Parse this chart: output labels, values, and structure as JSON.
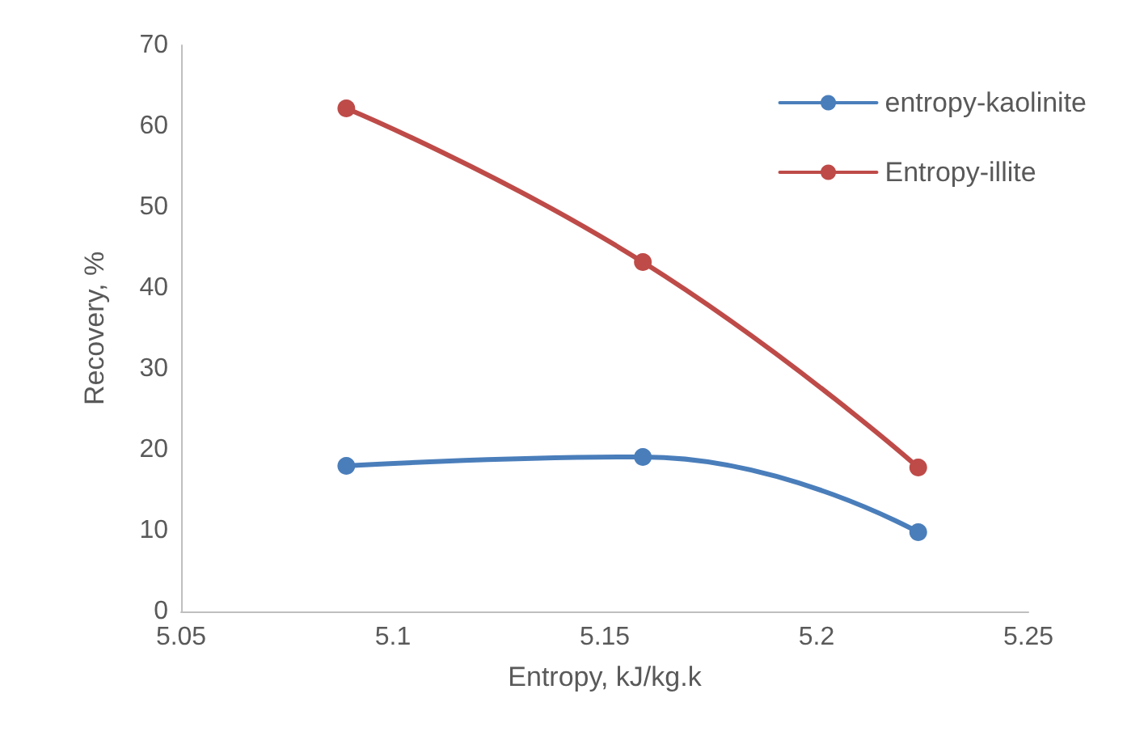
{
  "chart_data": {
    "type": "line",
    "xlabel": "Entropy, kJ/kg.k",
    "ylabel": "Recovery, %",
    "xlim": [
      5.05,
      5.25
    ],
    "xticks": [
      5.05,
      5.1,
      5.15,
      5.2,
      5.25
    ],
    "ylim": [
      0,
      70
    ],
    "yticks": [
      0,
      10,
      20,
      30,
      40,
      50,
      60,
      70
    ],
    "grid": false,
    "legend": "top right",
    "marker": "circle",
    "line_style": "solid",
    "series": [
      {
        "name": "entropy-kaolinite",
        "color": "#4a7ebb",
        "x": [
          5.089,
          5.159,
          5.224
        ],
        "values": [
          18,
          19.1,
          9.8
        ]
      },
      {
        "name": "Entropy-illite",
        "color": "#be4b48",
        "x": [
          5.089,
          5.159,
          5.224
        ],
        "values": [
          62.2,
          43.2,
          17.8
        ]
      }
    ]
  }
}
